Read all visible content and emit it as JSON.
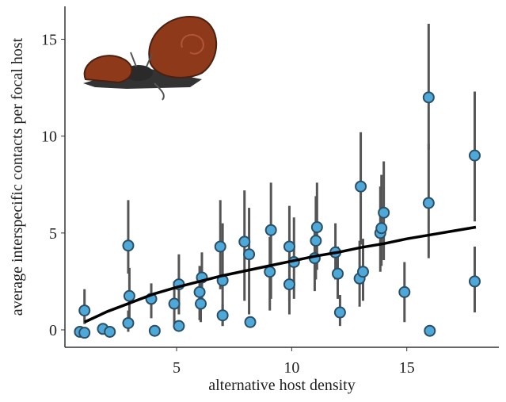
{
  "chart_data": {
    "type": "scatter",
    "x_label": "alternative host density",
    "y_label": "average interspecific contacts per focal host",
    "xlim": [
      0.15,
      19
    ],
    "ylim": [
      -0.9,
      16.7
    ],
    "xticks": [
      5,
      10,
      15
    ],
    "yticks": [
      0,
      5,
      10,
      15
    ],
    "series": [
      {
        "color": "#4fa9d8",
        "x": [
          0.8,
          1.0,
          1.0,
          1.8,
          2.1,
          2.9,
          2.95,
          2.9,
          3.9,
          4.05,
          4.9,
          5.1,
          5.1,
          6.0,
          6.1,
          6.05,
          6.9,
          7.0,
          7.0,
          7.95,
          8.15,
          8.2,
          9.1,
          9.05,
          9.9,
          9.9,
          10.1,
          11.0,
          11.05,
          11.1,
          11.9,
          12.0,
          12.1,
          13.0,
          12.95,
          13.1,
          13.85,
          13.9,
          14.0,
          14.9,
          15.95,
          15.95,
          16.0,
          17.95,
          17.95
        ],
        "values": [
          -0.1,
          1.0,
          -0.15,
          0.05,
          -0.1,
          4.35,
          1.75,
          0.35,
          1.6,
          -0.05,
          1.35,
          2.35,
          0.2,
          1.95,
          2.7,
          1.35,
          4.3,
          2.55,
          0.75,
          4.55,
          3.9,
          0.4,
          5.15,
          3.0,
          4.3,
          2.35,
          3.5,
          3.7,
          4.6,
          5.3,
          4.0,
          2.9,
          0.9,
          7.4,
          2.65,
          3.0,
          5.0,
          5.25,
          6.05,
          1.95,
          12.0,
          6.55,
          -0.05,
          9.0,
          2.5
        ],
        "lower": [
          null,
          0.3,
          null,
          null,
          null,
          2.9,
          0.5,
          -0.1,
          0.6,
          null,
          0.2,
          0.8,
          null,
          0.5,
          1.5,
          0.4,
          2.1,
          0.2,
          0.2,
          1.5,
          0.8,
          null,
          1.6,
          1.0,
          1.5,
          0.8,
          1.6,
          2.0,
          2.6,
          3.1,
          2.6,
          1.6,
          0.2,
          4.4,
          1.2,
          1.5,
          3.0,
          3.3,
          3.6,
          0.4,
          9.3,
          3.7,
          null,
          5.6,
          0.9
        ],
        "upper": [
          null,
          2.1,
          null,
          null,
          null,
          6.7,
          3.2,
          1.0,
          2.4,
          null,
          2.5,
          3.9,
          null,
          3.3,
          4.0,
          2.2,
          6.7,
          5.5,
          1.3,
          7.2,
          6.3,
          null,
          7.6,
          4.8,
          6.4,
          3.9,
          5.8,
          5.4,
          6.9,
          7.6,
          5.5,
          4.3,
          1.8,
          10.2,
          4.6,
          4.7,
          7.4,
          8.0,
          8.7,
          3.5,
          15.8,
          9.6,
          null,
          12.3,
          4.3
        ]
      },
      {
        "type": "line",
        "color": "#000000",
        "x": [
          1,
          2,
          3,
          4,
          5,
          6,
          7,
          8,
          9,
          10,
          11,
          12,
          13,
          14,
          15,
          16,
          17,
          18
        ],
        "values": [
          0.4,
          0.95,
          1.4,
          1.85,
          2.2,
          2.5,
          2.8,
          3.05,
          3.3,
          3.55,
          3.8,
          4.0,
          4.25,
          4.45,
          4.7,
          4.9,
          5.1,
          5.3
        ]
      }
    ]
  }
}
